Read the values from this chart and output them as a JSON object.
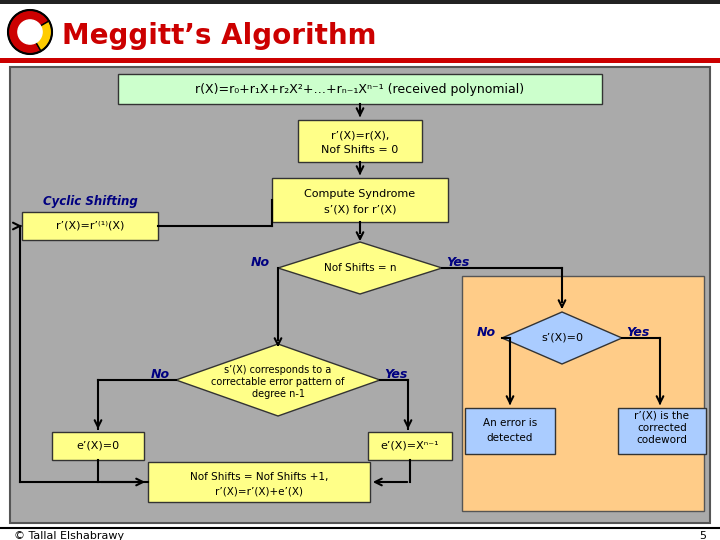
{
  "title": "Meggitt’s Algorithm",
  "title_color": "#CC0000",
  "slide_bg": "#FFFFFF",
  "gray_bg": "#AAAAAA",
  "orange_bg": "#FFCC88",
  "yellow": "#FFFF88",
  "green": "#CCFFCC",
  "blue": "#AACCFF",
  "label_color": "#000080",
  "footer_text": "© Tallal Elshabrawy",
  "page_num": "5"
}
